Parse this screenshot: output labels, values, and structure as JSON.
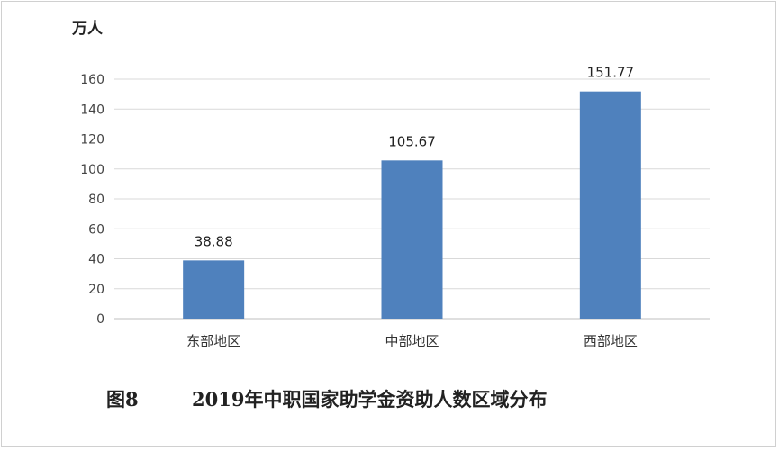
{
  "chart_data": {
    "type": "bar",
    "unit_label": "万人",
    "categories": [
      "东部地区",
      "中部地区",
      "西部地区"
    ],
    "values": [
      38.88,
      105.67,
      151.77
    ],
    "data_labels": [
      "38.88",
      "105.67",
      "151.77"
    ],
    "ylim": [
      0,
      160
    ],
    "yticks": [
      0,
      20,
      40,
      60,
      80,
      100,
      120,
      140,
      160
    ],
    "grid": true,
    "bar_color": "#4f81bd",
    "caption_number": "图8",
    "caption_title": "2019年中职国家助学金资助人数区域分布"
  }
}
